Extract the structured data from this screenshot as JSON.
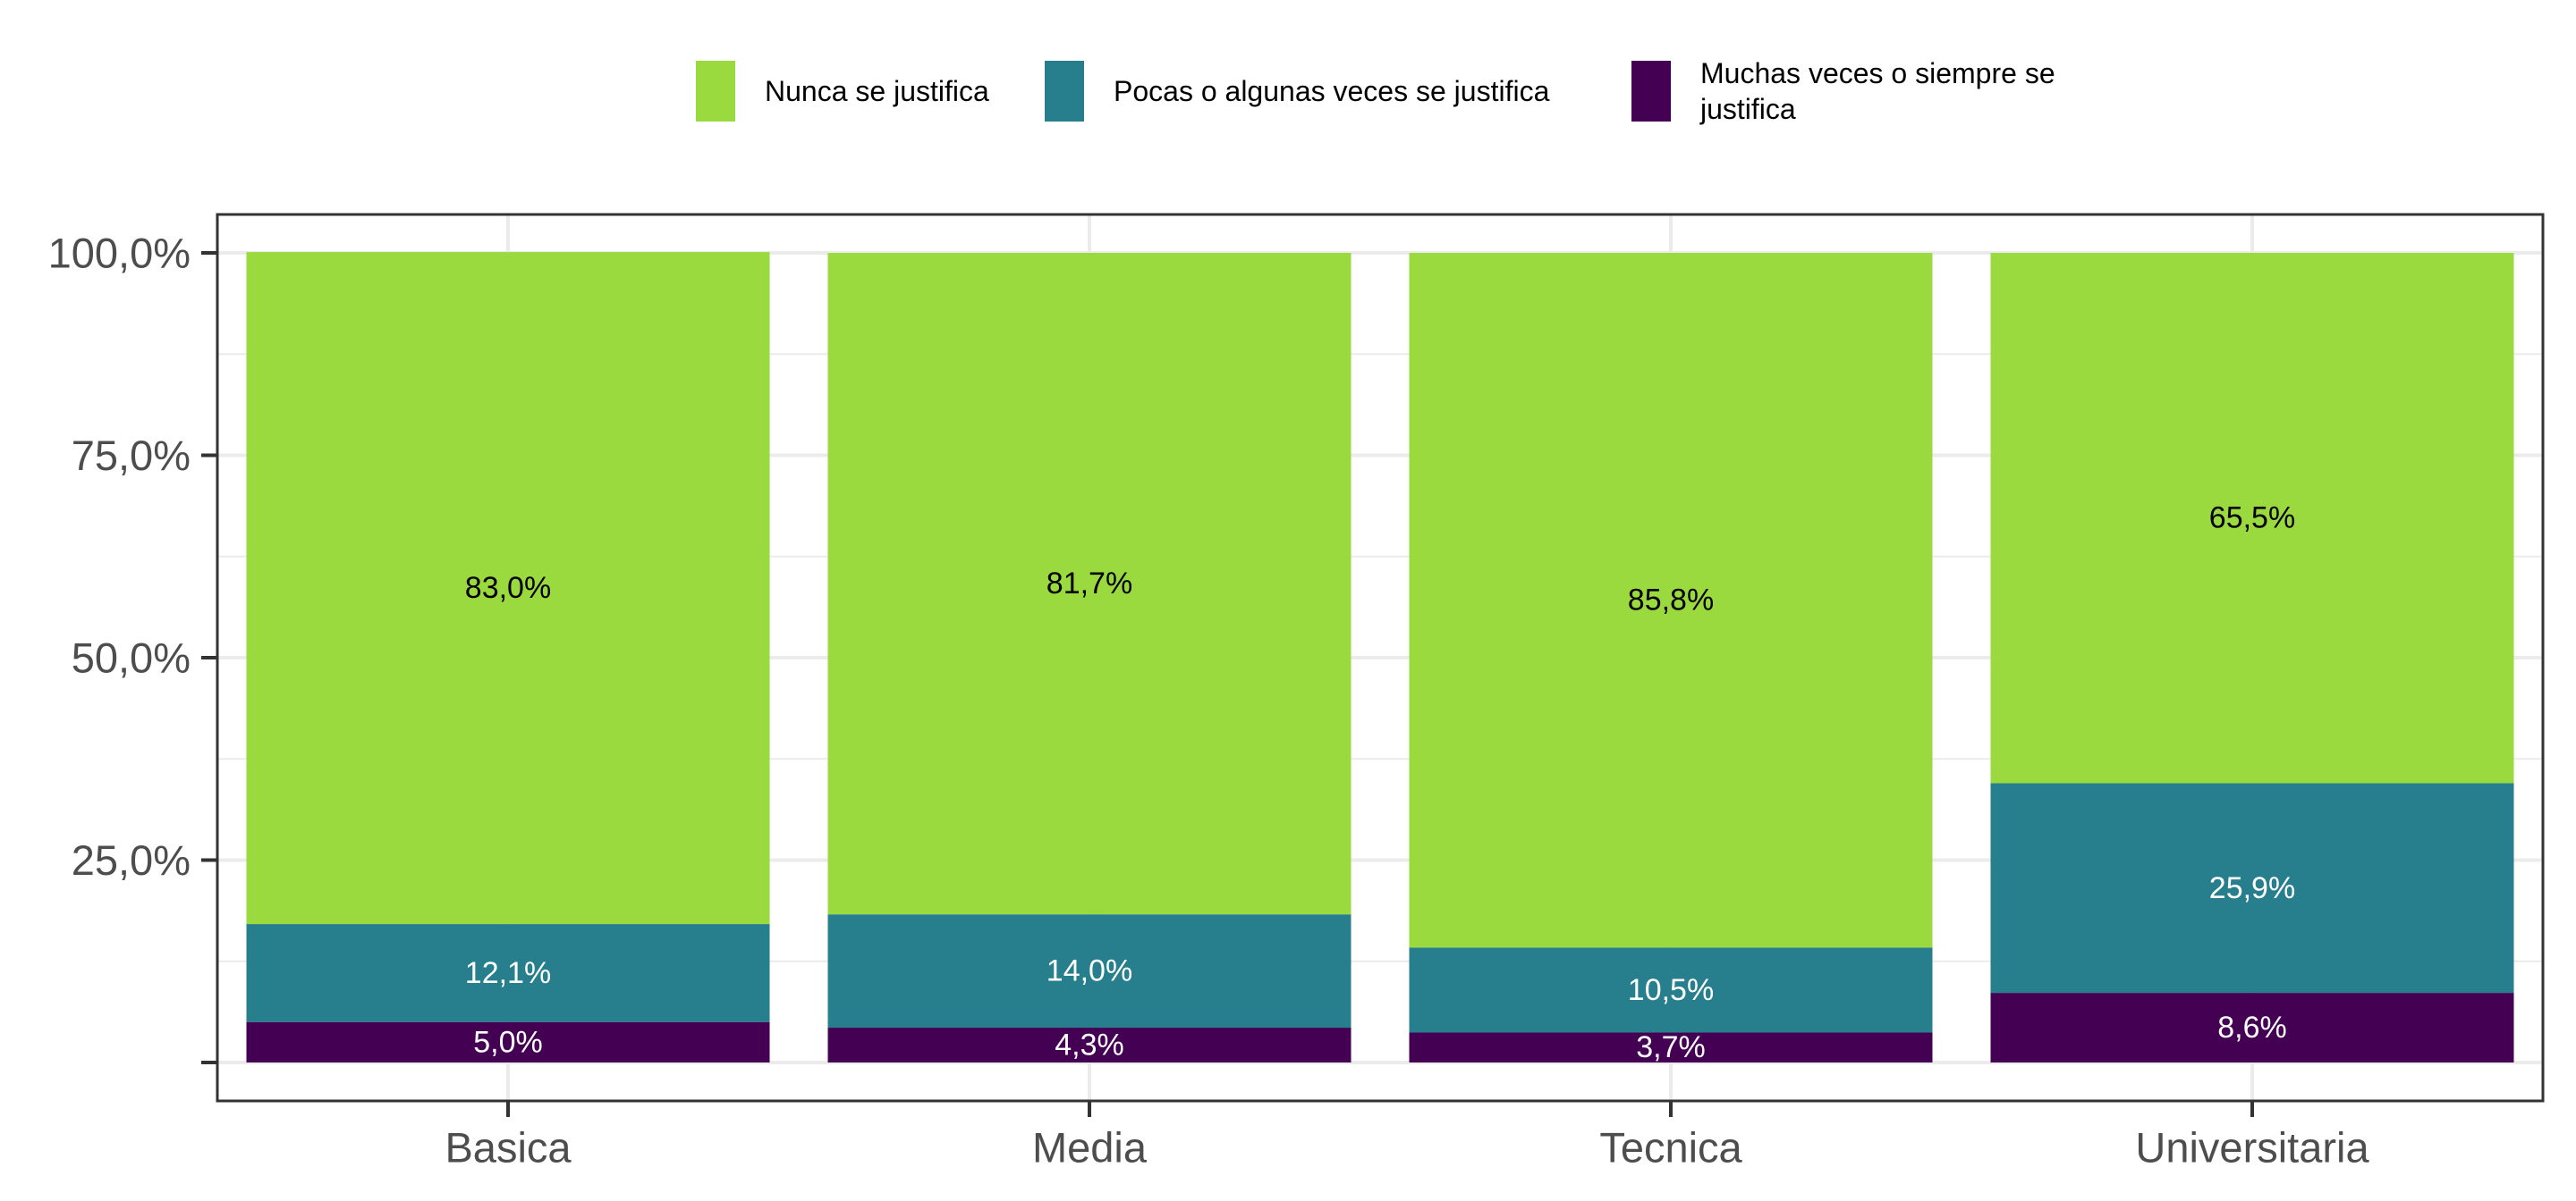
{
  "chart_data": {
    "type": "bar",
    "stacked": true,
    "title": "",
    "xlabel": "",
    "ylabel": "",
    "ylim": [
      0,
      100
    ],
    "y_ticks": [
      25,
      50,
      75,
      100
    ],
    "y_tick_labels": [
      "25,0%",
      "50,0%",
      "75,0%",
      "100,0%"
    ],
    "grid": true,
    "legend_position": "top",
    "categories": [
      "Basica",
      "Media",
      "Tecnica",
      "Universitaria"
    ],
    "series": [
      {
        "name": "Muchas veces o siempre se justifica",
        "legend_lines": [
          "Muchas veces o siempre se",
          "justifica"
        ],
        "color": "#440154",
        "label_color": "#ffffff",
        "values": [
          5.0,
          4.3,
          3.7,
          8.6
        ],
        "labels": [
          "5,0%",
          "4,3%",
          "3,7%",
          "8,6%"
        ]
      },
      {
        "name": "Pocas o algunas veces se justifica",
        "legend_lines": [
          "Pocas o algunas veces se justifica"
        ],
        "color": "#277F8E",
        "label_color": "#ffffff",
        "values": [
          12.1,
          14.0,
          10.5,
          25.9
        ],
        "labels": [
          "12,1%",
          "14,0%",
          "10,5%",
          "25,9%"
        ]
      },
      {
        "name": "Nunca se justifica",
        "legend_lines": [
          "Nunca se justifica"
        ],
        "color": "#9ADA3E",
        "label_color": "#000000",
        "values": [
          83.0,
          81.7,
          85.8,
          65.5
        ],
        "labels": [
          "83,0%",
          "81,7%",
          "85,8%",
          "65,5%"
        ]
      }
    ],
    "legend_order": [
      2,
      1,
      0
    ]
  }
}
